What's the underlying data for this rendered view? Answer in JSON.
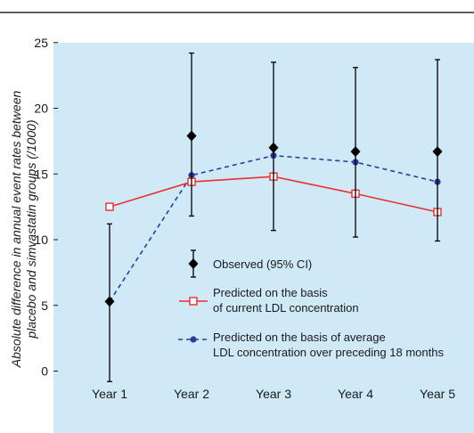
{
  "chart_data": {
    "type": "line",
    "title": "",
    "xlabel": "",
    "ylabel": "Absolute difference in annual event rates between placebo and simvastatin groups (/1000)",
    "ylabel_lines": [
      "Absolute difference in annual event rates between",
      "placebo and simvastatin groups (/1000)"
    ],
    "categories": [
      "Year 1",
      "Year 2",
      "Year 3",
      "Year 4",
      "Year 5"
    ],
    "ylim": [
      -5,
      25
    ],
    "yticks": [
      -5,
      0,
      5,
      10,
      15,
      20,
      25
    ],
    "grid": false,
    "legend_position": "center",
    "background_color": "#cfe9f7",
    "series": [
      {
        "name": "Observed (95% CI)",
        "style": "diamond-errorbar",
        "color": "#000000",
        "values": [
          5.3,
          17.9,
          17.0,
          16.7,
          16.7
        ],
        "ci_lower": [
          -0.8,
          11.8,
          10.7,
          10.2,
          9.9
        ],
        "ci_upper": [
          11.2,
          24.2,
          23.5,
          23.1,
          23.7
        ]
      },
      {
        "name": "Predicted on the basis of current LDL concentration",
        "name_lines": [
          "Predicted on the basis",
          "of current LDL concentration"
        ],
        "style": "solid-square",
        "color": "#e8312f",
        "values": [
          12.5,
          14.4,
          14.8,
          13.5,
          12.1
        ]
      },
      {
        "name": "Predicted on the basis of average LDL concentration over preceding 18 months",
        "name_lines": [
          "Predicted on the basis of average",
          "LDL concentration over preceding 18 months"
        ],
        "style": "dashed-circle",
        "color": "#2a3d9a",
        "values": [
          5.3,
          14.9,
          16.4,
          15.9,
          14.4
        ]
      }
    ]
  }
}
